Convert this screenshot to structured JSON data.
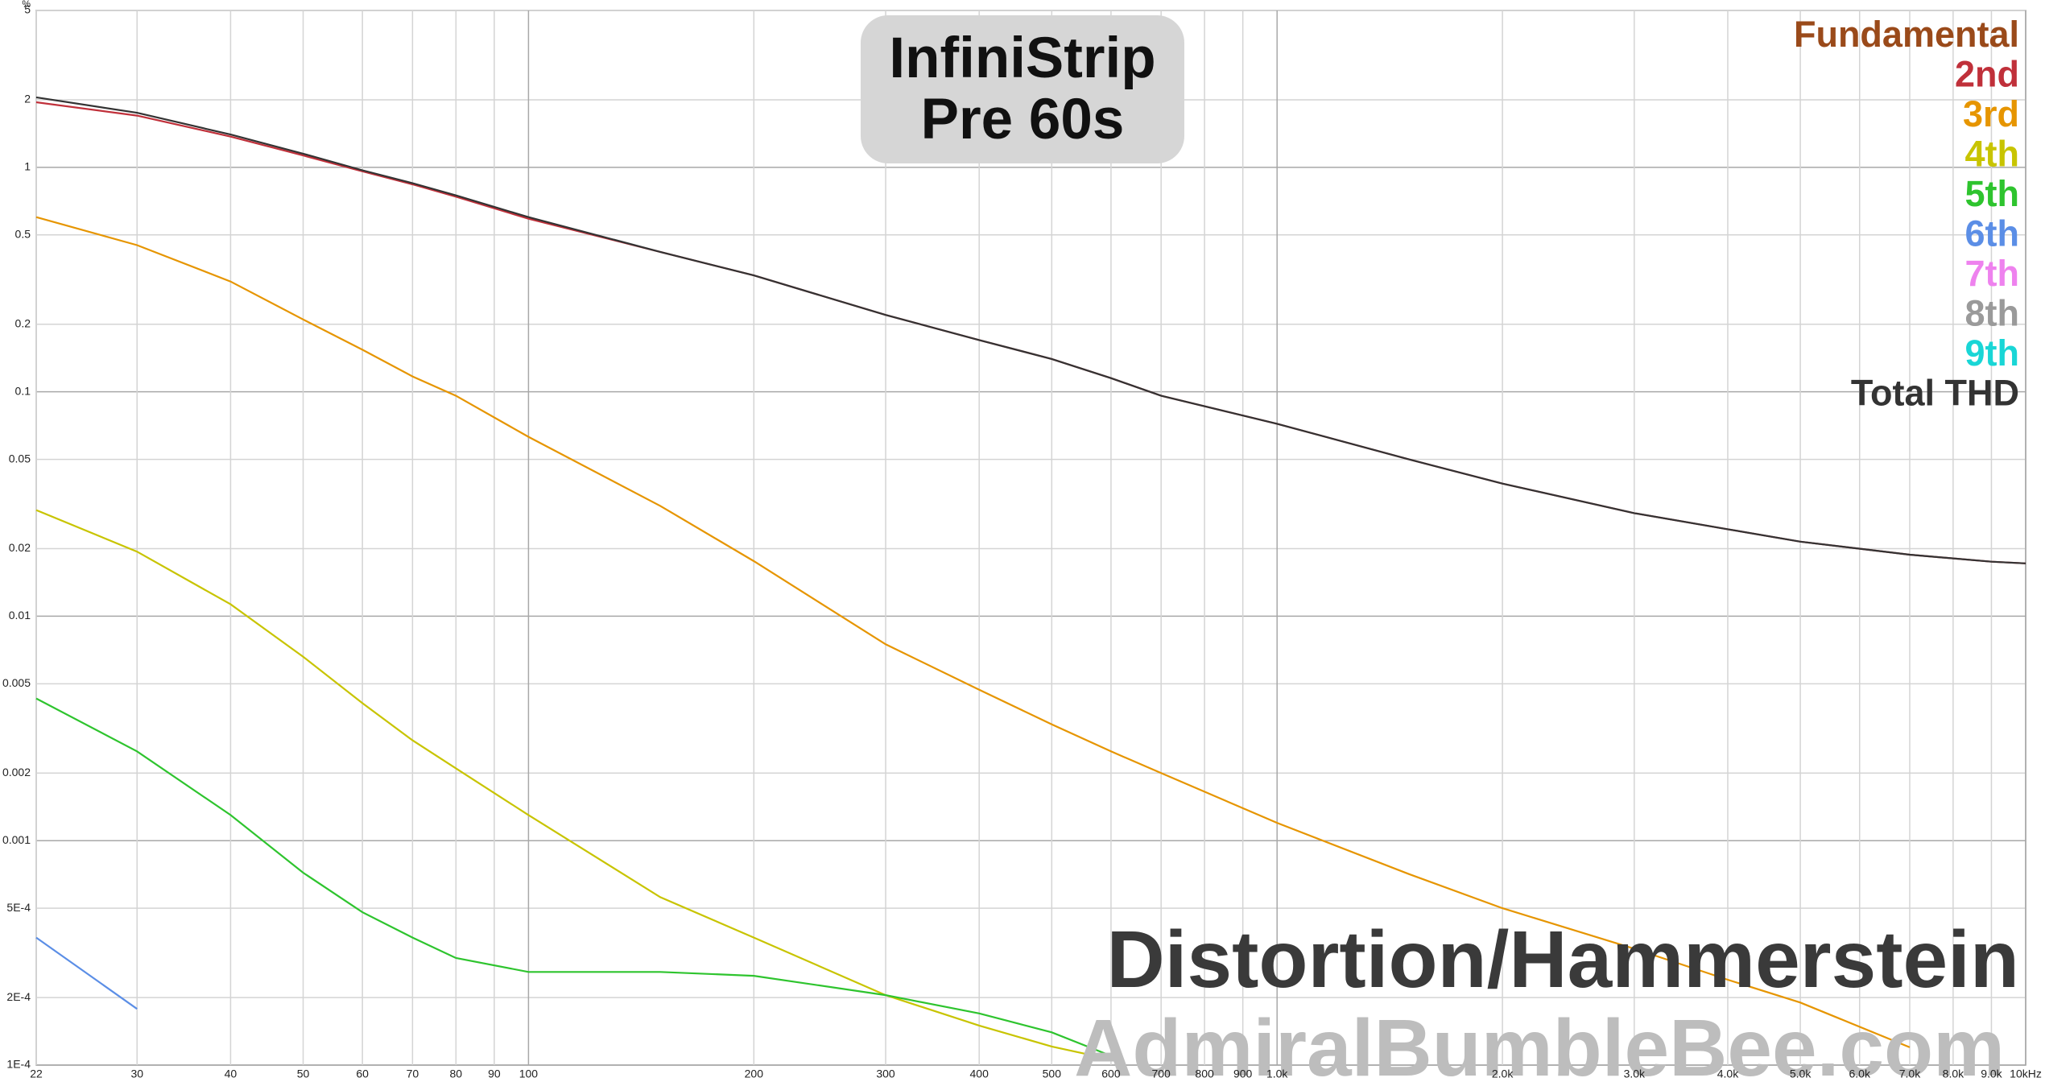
{
  "chart_data": {
    "type": "line",
    "title": "InfiniStrip Pre 60s",
    "y_label": "%",
    "annotations": [
      "Distortion/Hammerstein",
      "AdmiralBumbleBee.com"
    ],
    "x_scale": "log",
    "y_scale": "log",
    "grid": true,
    "legend": "top-right",
    "xlim": [
      22,
      10000
    ],
    "ylim": [
      0.0001,
      5
    ],
    "xticks": [
      22,
      30,
      40,
      50,
      60,
      70,
      80,
      90,
      100,
      200,
      300,
      400,
      500,
      600,
      700,
      800,
      900,
      {
        "value": 1000,
        "label": "1.0k"
      },
      {
        "value": 2000,
        "label": "2.0k"
      },
      {
        "value": 3000,
        "label": "3.0k"
      },
      {
        "value": 4000,
        "label": "4.0k"
      },
      {
        "value": 5000,
        "label": "5.0k"
      },
      {
        "value": 6000,
        "label": "6.0k"
      },
      {
        "value": 7000,
        "label": "7.0k"
      },
      {
        "value": 8000,
        "label": "8.0k"
      },
      {
        "value": 9000,
        "label": "9.0k"
      },
      {
        "value": 10000,
        "label": "10kHz"
      }
    ],
    "yticks": [
      {
        "value": 0.0001,
        "label": "1E-4"
      },
      {
        "value": 0.0002,
        "label": "2E-4"
      },
      {
        "value": 0.0005,
        "label": "5E-4"
      },
      0.001,
      0.002,
      0.005,
      0.01,
      0.02,
      0.05,
      0.1,
      0.2,
      0.5,
      1,
      2,
      5
    ],
    "x": [
      22,
      30,
      40,
      50,
      60,
      70,
      80,
      100,
      150,
      200,
      300,
      400,
      500,
      600,
      700,
      1000,
      1500,
      2000,
      3000,
      4000,
      5000,
      7000,
      9000,
      10000
    ],
    "series": [
      {
        "name": "Fundamental",
        "color": "#9a4a1a",
        "values": [
          null,
          null,
          null,
          null,
          null,
          null,
          null,
          null,
          null,
          null,
          null,
          null,
          null,
          null,
          null,
          null,
          null,
          null,
          null,
          null,
          null,
          null,
          null,
          null
        ]
      },
      {
        "name": "2nd",
        "color": "#c0303a",
        "values": [
          1.95,
          1.7,
          1.37,
          1.13,
          0.96,
          0.84,
          0.74,
          0.59,
          0.42,
          0.33,
          0.22,
          0.17,
          0.14,
          0.115,
          0.096,
          0.072,
          0.05,
          0.039,
          0.0288,
          0.0244,
          0.0215,
          0.0188,
          0.0175,
          0.0172
        ]
      },
      {
        "name": "3rd",
        "color": "#e69500",
        "values": [
          0.6,
          0.45,
          0.31,
          0.21,
          0.154,
          0.117,
          0.096,
          0.063,
          0.031,
          0.0176,
          0.0075,
          0.0047,
          0.0033,
          0.0025,
          0.002,
          0.0012,
          0.00071,
          0.0005,
          0.00033,
          0.00024,
          0.00019,
          0.00012,
          null,
          null
        ]
      },
      {
        "name": "4th",
        "color": "#c8c400",
        "values": [
          0.0297,
          0.0194,
          0.0113,
          0.0066,
          0.0041,
          0.0028,
          0.0021,
          0.0013,
          0.00056,
          0.00037,
          0.000205,
          0.00015,
          0.000121,
          0.000106,
          null,
          null,
          null,
          null,
          null,
          null,
          null,
          null,
          null,
          null
        ]
      },
      {
        "name": "5th",
        "color": "#2ec42e",
        "values": [
          0.0043,
          0.0025,
          0.0013,
          0.00072,
          0.00048,
          0.00037,
          0.0003,
          0.00026,
          0.00026,
          0.00025,
          0.000205,
          0.00017,
          0.00014,
          0.00011,
          null,
          null,
          null,
          null,
          null,
          null,
          null,
          null,
          null,
          null
        ]
      },
      {
        "name": "6th",
        "color": "#5b8ee6",
        "values": [
          0.00037,
          0.000178,
          null,
          null,
          null,
          null,
          null,
          null,
          null,
          null,
          null,
          null,
          null,
          null,
          null,
          null,
          null,
          null,
          null,
          null,
          null,
          null,
          null,
          null
        ]
      },
      {
        "name": "7th",
        "color": "#ee82ee",
        "values": [
          null,
          null,
          null,
          null,
          null,
          null,
          null,
          null,
          null,
          null,
          null,
          null,
          null,
          null,
          null,
          null,
          null,
          null,
          null,
          null,
          null,
          null,
          null,
          null
        ]
      },
      {
        "name": "8th",
        "color": "#9a9a9a",
        "values": [
          null,
          null,
          null,
          null,
          null,
          null,
          null,
          null,
          null,
          null,
          null,
          null,
          null,
          null,
          null,
          null,
          null,
          null,
          null,
          null,
          null,
          null,
          null,
          null
        ]
      },
      {
        "name": "9th",
        "color": "#19d6d6",
        "values": [
          null,
          null,
          null,
          null,
          null,
          null,
          null,
          null,
          null,
          null,
          null,
          null,
          null,
          null,
          null,
          null,
          null,
          null,
          null,
          null,
          null,
          null,
          null,
          null
        ]
      },
      {
        "name": "Total THD",
        "color": "#333333",
        "values": [
          2.05,
          1.75,
          1.4,
          1.15,
          0.97,
          0.85,
          0.75,
          0.6,
          0.42,
          0.33,
          0.22,
          0.17,
          0.14,
          0.115,
          0.096,
          0.072,
          0.05,
          0.039,
          0.0288,
          0.0244,
          0.0215,
          0.0188,
          0.0175,
          0.0172
        ]
      }
    ]
  }
}
